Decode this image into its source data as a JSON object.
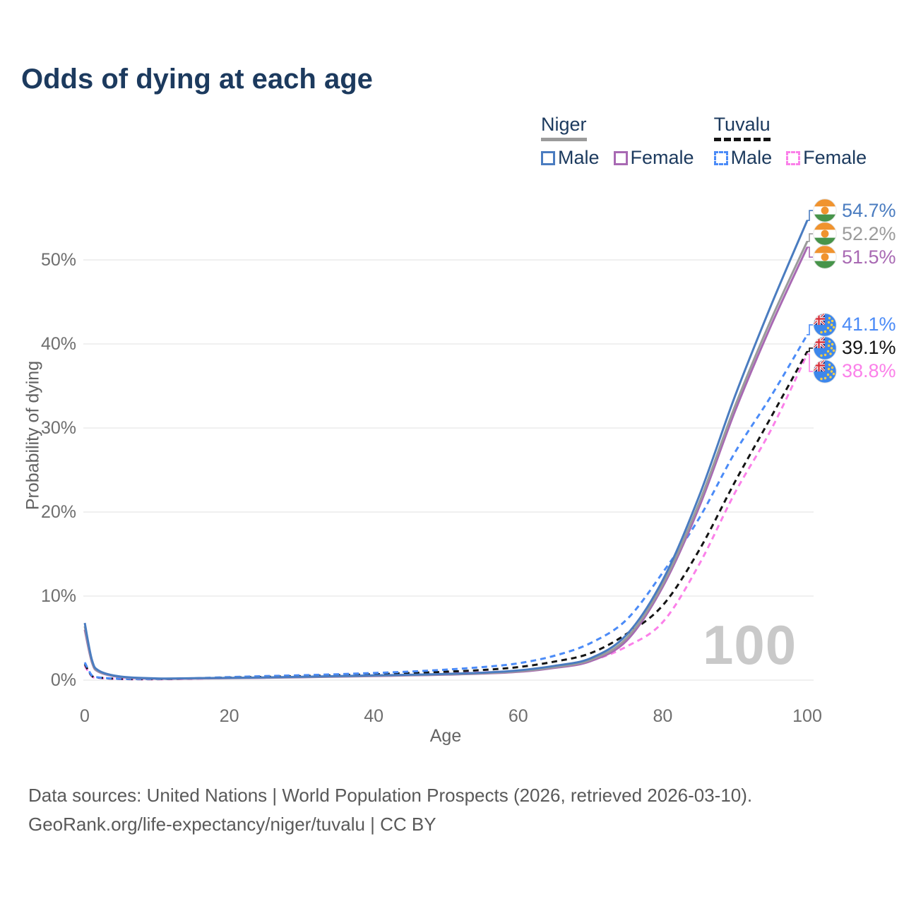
{
  "header": {},
  "legend": {
    "groups": [
      {
        "name": "Niger",
        "underline_style": "solid",
        "underline_color": "#9b9b9b",
        "items": [
          {
            "label": "Male",
            "color": "#4a7cc0",
            "dashed": false
          },
          {
            "label": "Female",
            "color": "#a869b3",
            "dashed": false
          }
        ]
      },
      {
        "name": "Tuvalu",
        "underline_style": "dashed",
        "underline_color": "#141414",
        "items": [
          {
            "label": "Male",
            "color": "#4b8bf7",
            "dashed": true
          },
          {
            "label": "Female",
            "color": "#fb80e9",
            "dashed": true
          }
        ]
      }
    ]
  },
  "chart_data": {
    "type": "line",
    "title": "Odds of dying at each age",
    "xlabel": "Age",
    "ylabel": "Probability of dying",
    "watermark": "100",
    "xlim": [
      0,
      100
    ],
    "ylim": [
      0,
      56
    ],
    "grid": true,
    "xticks": [
      {
        "value": 0,
        "label": "0"
      },
      {
        "value": 20,
        "label": "20"
      },
      {
        "value": 40,
        "label": "40"
      },
      {
        "value": 60,
        "label": "60"
      },
      {
        "value": 80,
        "label": "80"
      },
      {
        "value": 100,
        "label": "100"
      }
    ],
    "yticks": [
      {
        "value": 0,
        "label": "0%"
      },
      {
        "value": 10,
        "label": "10%"
      },
      {
        "value": 20,
        "label": "20%"
      },
      {
        "value": 30,
        "label": "30%"
      },
      {
        "value": 40,
        "label": "40%"
      },
      {
        "value": 50,
        "label": "50%"
      }
    ],
    "ages": [
      0,
      1,
      2,
      5,
      10,
      15,
      20,
      25,
      30,
      35,
      40,
      45,
      50,
      55,
      60,
      65,
      70,
      75,
      80,
      85,
      90,
      95,
      100
    ],
    "series": [
      {
        "name": "Tuvalu Female",
        "country": "Tuvalu",
        "sex": "Female",
        "color": "#fb80e9",
        "dashed": true,
        "flag": "tuvalu",
        "end_label": "38.8%",
        "values": [
          1.7,
          0.45,
          0.26,
          0.13,
          0.1,
          0.16,
          0.25,
          0.32,
          0.4,
          0.47,
          0.56,
          0.66,
          0.78,
          0.92,
          1.1,
          1.6,
          2.3,
          4.0,
          6.9,
          13.7,
          22.3,
          29.8,
          38.8
        ]
      },
      {
        "name": "Tuvalu Both sexes",
        "country": "Tuvalu",
        "sex": "Both",
        "color": "#141414",
        "dashed": true,
        "flag": "tuvalu",
        "end_label": "39.1%",
        "values": [
          1.9,
          0.5,
          0.29,
          0.14,
          0.12,
          0.19,
          0.3,
          0.39,
          0.48,
          0.58,
          0.7,
          0.84,
          1.0,
          1.2,
          1.55,
          2.2,
          3.2,
          5.5,
          8.9,
          15.4,
          23.6,
          31.3,
          39.1
        ]
      },
      {
        "name": "Tuvalu Male",
        "country": "Tuvalu",
        "sex": "Male",
        "color": "#4b8bf7",
        "dashed": true,
        "flag": "tuvalu",
        "end_label": "41.1%",
        "values": [
          2.1,
          0.55,
          0.32,
          0.16,
          0.13,
          0.22,
          0.36,
          0.48,
          0.58,
          0.7,
          0.85,
          1.02,
          1.25,
          1.55,
          2.0,
          2.9,
          4.4,
          7.2,
          12.8,
          19.2,
          27.1,
          33.8,
          41.1
        ]
      },
      {
        "name": "Niger Female",
        "country": "Niger",
        "sex": "Female",
        "color": "#a869b3",
        "dashed": false,
        "flag": "niger",
        "end_label": "51.5%",
        "values": [
          6.0,
          2.1,
          0.95,
          0.36,
          0.17,
          0.19,
          0.23,
          0.28,
          0.34,
          0.41,
          0.48,
          0.56,
          0.65,
          0.77,
          0.98,
          1.45,
          2.25,
          4.7,
          11.1,
          20.5,
          32.0,
          42.2,
          51.5
        ]
      },
      {
        "name": "Niger Both sexes",
        "country": "Niger",
        "sex": "Both",
        "color": "#9b9b9b",
        "dashed": false,
        "flag": "niger",
        "end_label": "52.2%",
        "values": [
          6.4,
          2.2,
          1.0,
          0.39,
          0.18,
          0.21,
          0.25,
          0.3,
          0.37,
          0.44,
          0.52,
          0.6,
          0.69,
          0.82,
          1.05,
          1.55,
          2.4,
          5.0,
          11.4,
          21.0,
          32.6,
          42.9,
          52.2
        ]
      },
      {
        "name": "Niger Male",
        "country": "Niger",
        "sex": "Male",
        "color": "#4a7cc0",
        "dashed": false,
        "flag": "niger",
        "end_label": "54.7%",
        "values": [
          6.8,
          2.4,
          1.1,
          0.42,
          0.2,
          0.23,
          0.27,
          0.33,
          0.4,
          0.48,
          0.56,
          0.64,
          0.74,
          0.88,
          1.15,
          1.7,
          2.6,
          5.4,
          11.9,
          21.8,
          33.8,
          44.6,
          54.7
        ]
      }
    ],
    "legend_position": "top-right"
  },
  "footer": {
    "line1": "Data sources: United Nations | World Population Prospects (2026, retrieved 2026-03-10).",
    "line2": "GeoRank.org/life-expectancy/niger/tuvalu | CC BY"
  }
}
